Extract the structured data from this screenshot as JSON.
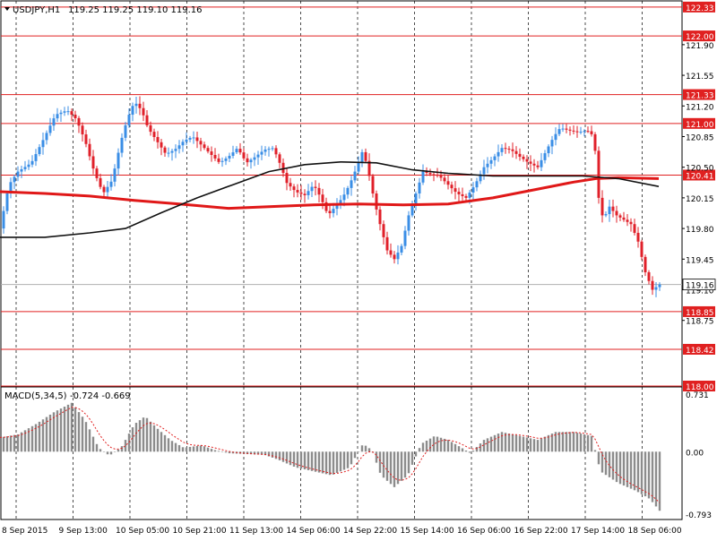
{
  "header": {
    "symbol_tf": "USDJPY,H1",
    "ohlc": "119.25 119.25 119.10 119.16"
  },
  "colors": {
    "bull": "#3a8ee6",
    "bear": "#e0202a",
    "ma_slow": "#e01818",
    "ma_fast": "#111111",
    "level": "#e02020",
    "macd_hist": "#8c8c8c",
    "macd_signal": "#e02020"
  },
  "chart_data": [
    {
      "type": "candlestick",
      "series": [
        {
          "name": "USDJPY,H1"
        }
      ],
      "y_axis": {
        "ticks": [
          "121.90",
          "121.55",
          "121.20",
          "120.85",
          "120.50",
          "120.15",
          "119.80",
          "119.45",
          "119.10",
          "118.75"
        ],
        "range": [
          118.0,
          122.4
        ]
      },
      "price_levels": [
        "122.33",
        "122.00",
        "121.33",
        "121.00",
        "120.41",
        "118.85",
        "118.42",
        "118.00"
      ],
      "current_price": "119.16",
      "x_axis": {
        "ticks": [
          "8 Sep 2015",
          "9 Sep 13:00",
          "10 Sep 05:00",
          "10 Sep 21:00",
          "11 Sep 13:00",
          "14 Sep 06:00",
          "14 Sep 22:00",
          "15 Sep 14:00",
          "16 Sep 06:00",
          "16 Sep 22:00",
          "17 Sep 14:00",
          "18 Sep 06:00"
        ]
      },
      "price_path": [
        [
          0,
          119.8
        ],
        [
          10,
          120.3
        ],
        [
          20,
          120.45
        ],
        [
          35,
          120.55
        ],
        [
          50,
          120.85
        ],
        [
          62,
          121.1
        ],
        [
          75,
          121.15
        ],
        [
          85,
          121.05
        ],
        [
          95,
          120.8
        ],
        [
          105,
          120.45
        ],
        [
          115,
          120.2
        ],
        [
          125,
          120.35
        ],
        [
          135,
          120.8
        ],
        [
          142,
          121.05
        ],
        [
          150,
          121.25
        ],
        [
          158,
          121.15
        ],
        [
          165,
          120.95
        ],
        [
          175,
          120.8
        ],
        [
          185,
          120.65
        ],
        [
          195,
          120.7
        ],
        [
          205,
          120.8
        ],
        [
          215,
          120.85
        ],
        [
          225,
          120.75
        ],
        [
          235,
          120.65
        ],
        [
          245,
          120.55
        ],
        [
          255,
          120.62
        ],
        [
          265,
          120.72
        ],
        [
          275,
          120.55
        ],
        [
          285,
          120.62
        ],
        [
          295,
          120.7
        ],
        [
          305,
          120.72
        ],
        [
          312,
          120.55
        ],
        [
          320,
          120.32
        ],
        [
          330,
          120.22
        ],
        [
          340,
          120.18
        ],
        [
          350,
          120.3
        ],
        [
          358,
          120.15
        ],
        [
          366,
          119.95
        ],
        [
          374,
          120.05
        ],
        [
          382,
          120.15
        ],
        [
          390,
          120.3
        ],
        [
          398,
          120.5
        ],
        [
          405,
          120.7
        ],
        [
          412,
          120.4
        ],
        [
          418,
          120.1
        ],
        [
          424,
          119.85
        ],
        [
          432,
          119.55
        ],
        [
          440,
          119.45
        ],
        [
          448,
          119.6
        ],
        [
          456,
          119.95
        ],
        [
          464,
          120.2
        ],
        [
          472,
          120.45
        ],
        [
          480,
          120.42
        ],
        [
          490,
          120.4
        ],
        [
          500,
          120.3
        ],
        [
          510,
          120.2
        ],
        [
          520,
          120.15
        ],
        [
          530,
          120.3
        ],
        [
          540,
          120.5
        ],
        [
          550,
          120.6
        ],
        [
          560,
          120.72
        ],
        [
          570,
          120.7
        ],
        [
          580,
          120.62
        ],
        [
          590,
          120.55
        ],
        [
          600,
          120.5
        ],
        [
          610,
          120.7
        ],
        [
          618,
          120.85
        ],
        [
          625,
          120.95
        ],
        [
          635,
          120.92
        ],
        [
          645,
          120.9
        ],
        [
          655,
          120.92
        ],
        [
          663,
          120.85
        ],
        [
          667,
          120.2
        ],
        [
          673,
          119.9
        ],
        [
          680,
          120.05
        ],
        [
          688,
          119.95
        ],
        [
          696,
          119.9
        ],
        [
          704,
          119.85
        ],
        [
          712,
          119.65
        ],
        [
          720,
          119.3
        ],
        [
          728,
          119.1
        ],
        [
          736,
          119.16
        ]
      ],
      "moving_averages": [
        {
          "name": "slow",
          "path": [
            [
              0,
              120.22
            ],
            [
              50,
              120.2
            ],
            [
              100,
              120.17
            ],
            [
              150,
              120.12
            ],
            [
              200,
              120.08
            ],
            [
              255,
              120.03
            ],
            [
              300,
              120.05
            ],
            [
              350,
              120.07
            ],
            [
              400,
              120.08
            ],
            [
              450,
              120.07
            ],
            [
              500,
              120.08
            ],
            [
              550,
              120.15
            ],
            [
              600,
              120.25
            ],
            [
              640,
              120.33
            ],
            [
              665,
              120.37
            ],
            [
              690,
              120.38
            ],
            [
              735,
              120.37
            ]
          ]
        },
        {
          "name": "fast",
          "path": [
            [
              0,
              119.7
            ],
            [
              50,
              119.7
            ],
            [
              100,
              119.75
            ],
            [
              140,
              119.8
            ],
            [
              180,
              119.98
            ],
            [
              220,
              120.15
            ],
            [
              260,
              120.3
            ],
            [
              300,
              120.45
            ],
            [
              340,
              120.53
            ],
            [
              380,
              120.56
            ],
            [
              420,
              120.55
            ],
            [
              460,
              120.47
            ],
            [
              500,
              120.43
            ],
            [
              550,
              120.4
            ],
            [
              600,
              120.4
            ],
            [
              650,
              120.4
            ],
            [
              690,
              120.37
            ],
            [
              735,
              120.28
            ]
          ]
        }
      ]
    },
    {
      "type": "bar",
      "title": "MACD(5,34,5)",
      "values_text": "-0.724 -0.669",
      "y_axis": {
        "ticks": [
          "0.731",
          "0.00",
          "-0.793"
        ],
        "range": [
          -0.793,
          0.731
        ]
      },
      "histogram_path": [
        [
          0,
          0.18
        ],
        [
          20,
          0.22
        ],
        [
          40,
          0.35
        ],
        [
          60,
          0.5
        ],
        [
          80,
          0.62
        ],
        [
          95,
          0.4
        ],
        [
          110,
          0.05
        ],
        [
          122,
          -0.05
        ],
        [
          135,
          0.05
        ],
        [
          150,
          0.35
        ],
        [
          162,
          0.45
        ],
        [
          175,
          0.3
        ],
        [
          190,
          0.15
        ],
        [
          205,
          0.05
        ],
        [
          225,
          0.08
        ],
        [
          240,
          0.02
        ],
        [
          255,
          -0.02
        ],
        [
          275,
          -0.03
        ],
        [
          295,
          -0.04
        ],
        [
          310,
          -0.1
        ],
        [
          330,
          -0.2
        ],
        [
          350,
          -0.25
        ],
        [
          370,
          -0.3
        ],
        [
          390,
          -0.2
        ],
        [
          405,
          0.1
        ],
        [
          415,
          0.02
        ],
        [
          425,
          -0.3
        ],
        [
          440,
          -0.45
        ],
        [
          455,
          -0.3
        ],
        [
          470,
          0.1
        ],
        [
          485,
          0.2
        ],
        [
          500,
          0.15
        ],
        [
          515,
          0.05
        ],
        [
          525,
          -0.02
        ],
        [
          540,
          0.15
        ],
        [
          560,
          0.25
        ],
        [
          580,
          0.2
        ],
        [
          600,
          0.15
        ],
        [
          620,
          0.25
        ],
        [
          640,
          0.25
        ],
        [
          660,
          0.2
        ],
        [
          670,
          -0.25
        ],
        [
          690,
          -0.4
        ],
        [
          710,
          -0.5
        ],
        [
          725,
          -0.6
        ],
        [
          736,
          -0.75
        ]
      ]
    }
  ]
}
